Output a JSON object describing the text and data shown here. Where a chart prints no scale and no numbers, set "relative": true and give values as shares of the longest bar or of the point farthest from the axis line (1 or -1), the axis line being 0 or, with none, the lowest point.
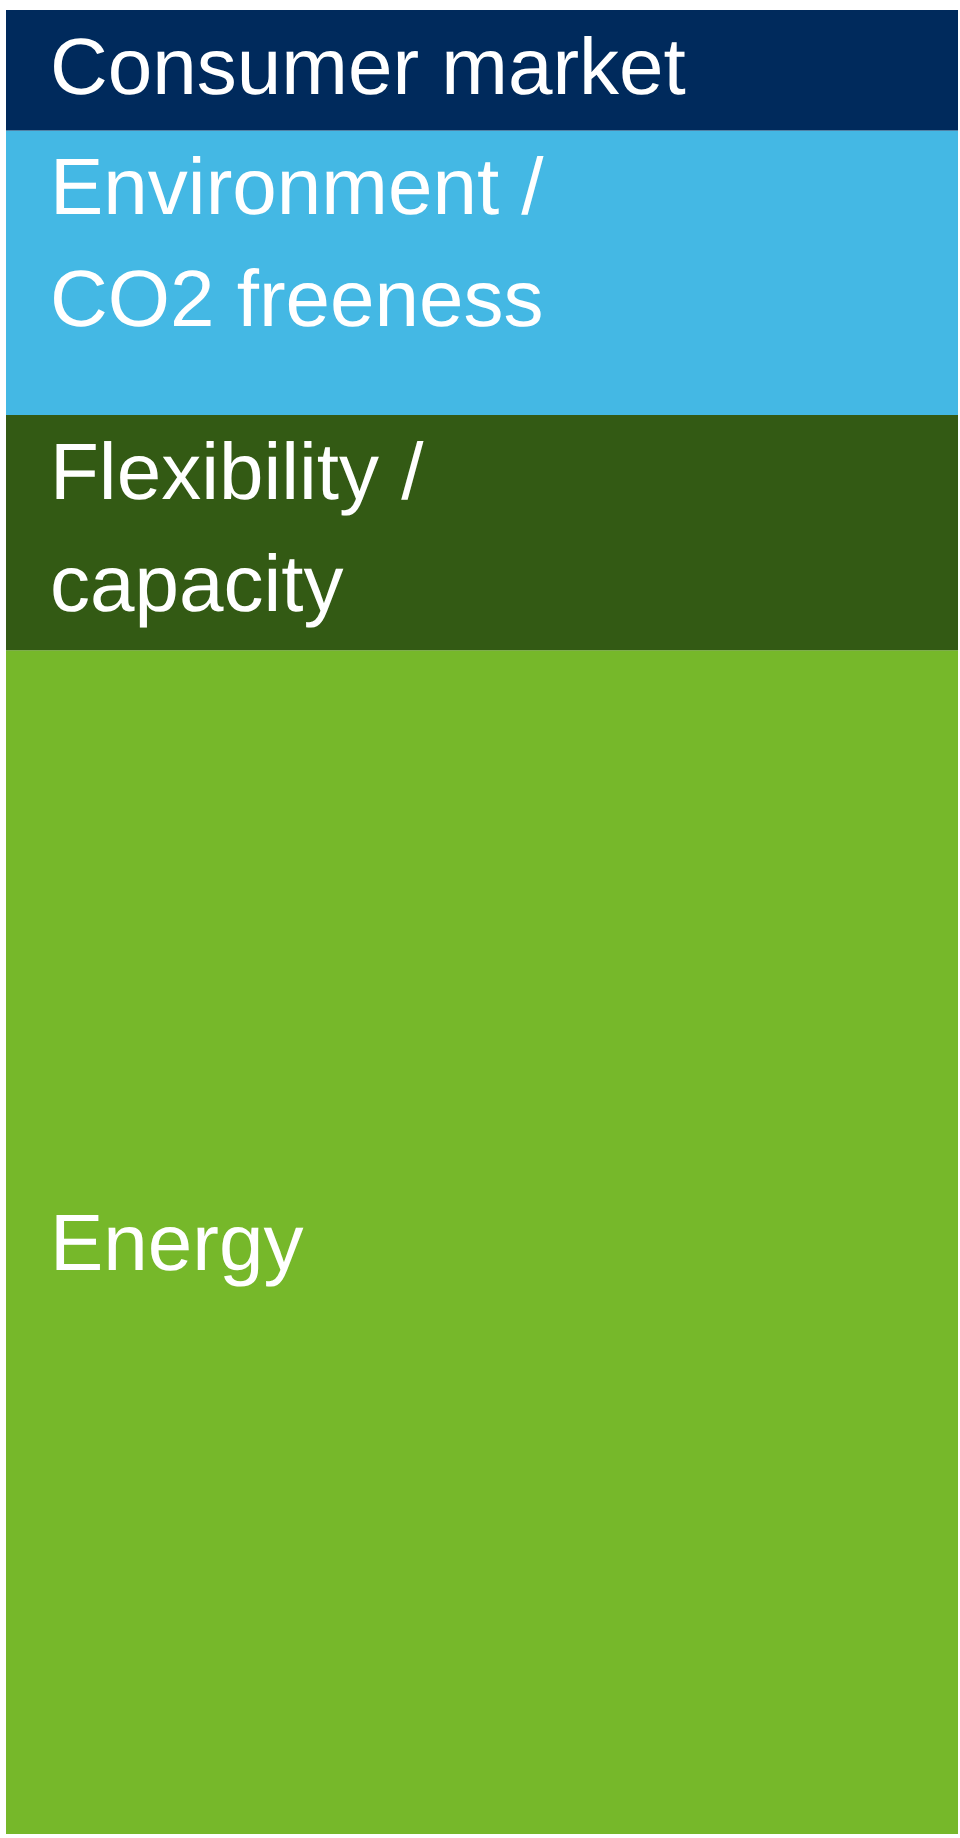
{
  "chart_data": {
    "type": "bar",
    "relative": true,
    "stacked": true,
    "categories": [
      null
    ],
    "series": [
      {
        "name": "Energy",
        "color": "#76b82a",
        "values": [
          0.649
        ]
      },
      {
        "name": "Flexibility / capacity",
        "color": "#335a14",
        "values": [
          0.129
        ]
      },
      {
        "name": "Environment / CO2 freeness",
        "color": "#44b8e4",
        "values": [
          0.156
        ]
      },
      {
        "name": "Consumer market",
        "color": "#002a5c",
        "values": [
          0.066
        ]
      }
    ]
  }
}
